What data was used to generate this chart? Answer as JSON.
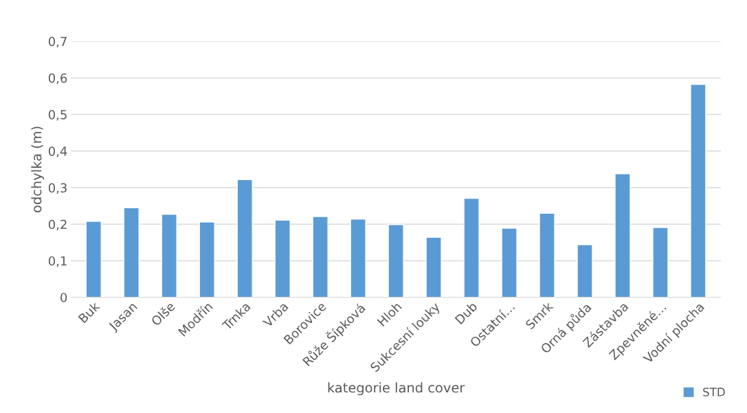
{
  "chart_data": {
    "type": "bar",
    "categories": [
      "Buk",
      "Jasan",
      "Olše",
      "Modřín",
      "Trnka",
      "Vrba",
      "Borovice",
      "Růže Šípková",
      "Hloh",
      "Sukcesní louky",
      "Dub",
      "Ostatní…",
      "Smrk",
      "Orná půda",
      "Zástavba",
      "Zpevněné…",
      "Vodní plocha"
    ],
    "series": [
      {
        "name": "STD",
        "color": "#5b9bd5",
        "values": [
          0.208,
          0.245,
          0.227,
          0.206,
          0.322,
          0.211,
          0.221,
          0.214,
          0.199,
          0.164,
          0.271,
          0.189,
          0.23,
          0.144,
          0.338,
          0.191,
          0.582
        ]
      }
    ],
    "xlabel": "kategorie land cover",
    "ylabel": "odchylka (m)",
    "ylim": [
      0,
      0.7
    ],
    "yticks": [
      {
        "value": 0,
        "label": "0"
      },
      {
        "value": 0.1,
        "label": "0,1"
      },
      {
        "value": 0.2,
        "label": "0,2"
      },
      {
        "value": 0.3,
        "label": "0,3"
      },
      {
        "value": 0.4,
        "label": "0,4"
      },
      {
        "value": 0.5,
        "label": "0,5"
      },
      {
        "value": 0.6,
        "label": "0,6"
      },
      {
        "value": 0.7,
        "label": "0,7"
      }
    ],
    "grid": "y",
    "legend": "bottom right"
  }
}
